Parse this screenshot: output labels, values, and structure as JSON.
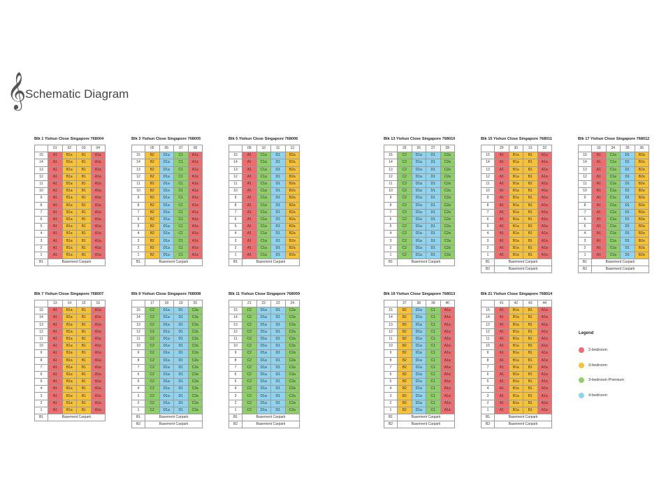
{
  "header": {
    "clef_glyph": "𝄞",
    "title": "Schematic Diagram"
  },
  "colors": {
    "A1": "#ee6b6e",
    "A1a": "#ee6b6e",
    "B1": "#f7c137",
    "B1a": "#f7c137",
    "B2": "#f7c137",
    "B2a": "#f7c137",
    "C1": "#8fcf6a",
    "C1a": "#8fcf6a",
    "C2": "#8fcf6a",
    "C2a": "#8fcf6a",
    "D1": "#8fd3ee",
    "D1a": "#8fd3ee"
  },
  "floors": [
    "15",
    "14",
    "13",
    "12",
    "11",
    "10",
    "9",
    "8",
    "7",
    "6",
    "5",
    "4",
    "3",
    "2",
    "1"
  ],
  "blocks": [
    {
      "title": "Blk 1 Yishun Close Singapore 768004",
      "units": [
        "01",
        "02",
        "03",
        "04"
      ],
      "row": [
        "A1",
        "B1a",
        "B1",
        "A1a"
      ],
      "basement": [
        [
          "B1",
          "Basement Carpark"
        ]
      ]
    },
    {
      "title": "Blk 3 Yishun Close Singapore 768005",
      "units": [
        "05",
        "06",
        "07",
        "08"
      ],
      "row": [
        "B2",
        "D1a",
        "C1",
        "A1a"
      ],
      "basement": [
        [
          "B1",
          "Basement Carpark"
        ]
      ]
    },
    {
      "title": "Blk 5 Yishun Close Singapore 768006",
      "units": [
        "09",
        "10",
        "11",
        "12"
      ],
      "row": [
        "A1",
        "C1a",
        "D1",
        "B2a"
      ],
      "basement": [
        [
          "B1",
          "Basement Carpark"
        ]
      ]
    },
    {
      "title": "Blk 13 Yishun Close Singapore 768010",
      "units": [
        "25",
        "26",
        "27",
        "28"
      ],
      "row": [
        "C2",
        "D1a",
        "D1",
        "C2a"
      ],
      "basement": [
        [
          "B1",
          "Basement Carpark"
        ]
      ]
    },
    {
      "title": "Blk 15 Yishun Close Singapore 768011",
      "units": [
        "29",
        "30",
        "31",
        "32"
      ],
      "row": [
        "A1",
        "B1a",
        "B1",
        "A1a"
      ],
      "basement": [
        [
          "B1",
          "Basement Carpark"
        ],
        [
          "B2",
          "Basement Carpark"
        ]
      ]
    },
    {
      "title": "Blk 17 Yishun Close Singapore 768012",
      "units": [
        "33",
        "34",
        "35",
        "36"
      ],
      "row": [
        "A1",
        "C1a",
        "D1",
        "B2a"
      ],
      "basement": [
        [
          "B1",
          "Basement Carpark"
        ],
        [
          "B2",
          "Basement Carpark"
        ]
      ]
    },
    {
      "title": "Blk 7 Yishun Close Singapore 768007",
      "units": [
        "13",
        "14",
        "15",
        "16"
      ],
      "row": [
        "A1",
        "B1a",
        "B1",
        "A1a"
      ],
      "basement": [
        [
          "B1",
          "Basement Carpark"
        ]
      ]
    },
    {
      "title": "Blk 9 Yishun Close Singapore 768008",
      "units": [
        "17",
        "18",
        "19",
        "20"
      ],
      "row": [
        "C2",
        "D1a",
        "D1",
        "C2a"
      ],
      "basement": [
        [
          "B1",
          "Basement Carpark"
        ],
        [
          "B2",
          "Basement Carpark"
        ]
      ]
    },
    {
      "title": "Blk 11 Yishun Close Singapore 768009",
      "units": [
        "21",
        "22",
        "23",
        "24"
      ],
      "row": [
        "C2",
        "D1a",
        "D1",
        "C2a"
      ],
      "basement": [
        [
          "B1",
          "Basement Carpark"
        ],
        [
          "B2",
          "Basement Carpark"
        ]
      ]
    },
    {
      "title": "Blk 19 Yishun Close Singapore 768013",
      "units": [
        "37",
        "38",
        "39",
        "40"
      ],
      "row": [
        "B2",
        "D1a",
        "C1",
        "A1a"
      ],
      "basement": [
        [
          "B1",
          "Basement Carpark"
        ],
        [
          "B2",
          "Basement Carpark"
        ]
      ]
    },
    {
      "title": "Blk 21 Yishun Close Singapore 768014",
      "units": [
        "41",
        "42",
        "43",
        "44"
      ],
      "row": [
        "A1",
        "B1a",
        "B1",
        "A1a"
      ],
      "basement": [
        [
          "B1",
          "Basement Carpark"
        ],
        [
          "B2",
          "Basement Carpark"
        ]
      ]
    }
  ],
  "legend": {
    "title": "Legend",
    "items": [
      {
        "label": "2-bedroom",
        "color": "#ee6b6e"
      },
      {
        "label": "3-bedroom",
        "color": "#f7c137"
      },
      {
        "label": "3-bedroom Premium",
        "color": "#8fcf6a"
      },
      {
        "label": "4-bedroom",
        "color": "#8fd3ee"
      }
    ]
  }
}
